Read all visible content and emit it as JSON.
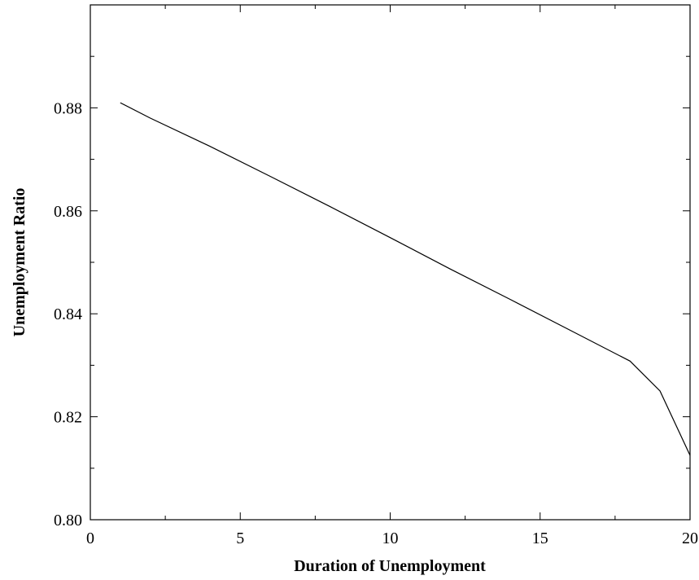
{
  "chart_data": {
    "type": "line",
    "title": "",
    "xlabel": "Duration of Unemployment",
    "ylabel": "Unemployment Ratio",
    "xlim": [
      0,
      20
    ],
    "ylim": [
      0.8,
      0.9
    ],
    "grid": false,
    "legend": "none",
    "x_ticks": [
      0,
      5,
      10,
      15,
      20
    ],
    "x_tick_labels": [
      "0",
      "5",
      "10",
      "15",
      "20"
    ],
    "y_ticks": [
      0.8,
      0.82,
      0.84,
      0.86,
      0.88
    ],
    "y_tick_labels": [
      "0.80",
      "0.82",
      "0.84",
      "0.86",
      "0.88"
    ],
    "series": [
      {
        "x": [
          1,
          2,
          4,
          6,
          8,
          10,
          12,
          14,
          16,
          18,
          19,
          20
        ],
        "values": [
          0.881,
          0.878,
          0.8725,
          0.8667,
          0.8608,
          0.8548,
          0.8487,
          0.8428,
          0.8368,
          0.8308,
          0.825,
          0.8125
        ],
        "color": "#000000"
      }
    ]
  }
}
